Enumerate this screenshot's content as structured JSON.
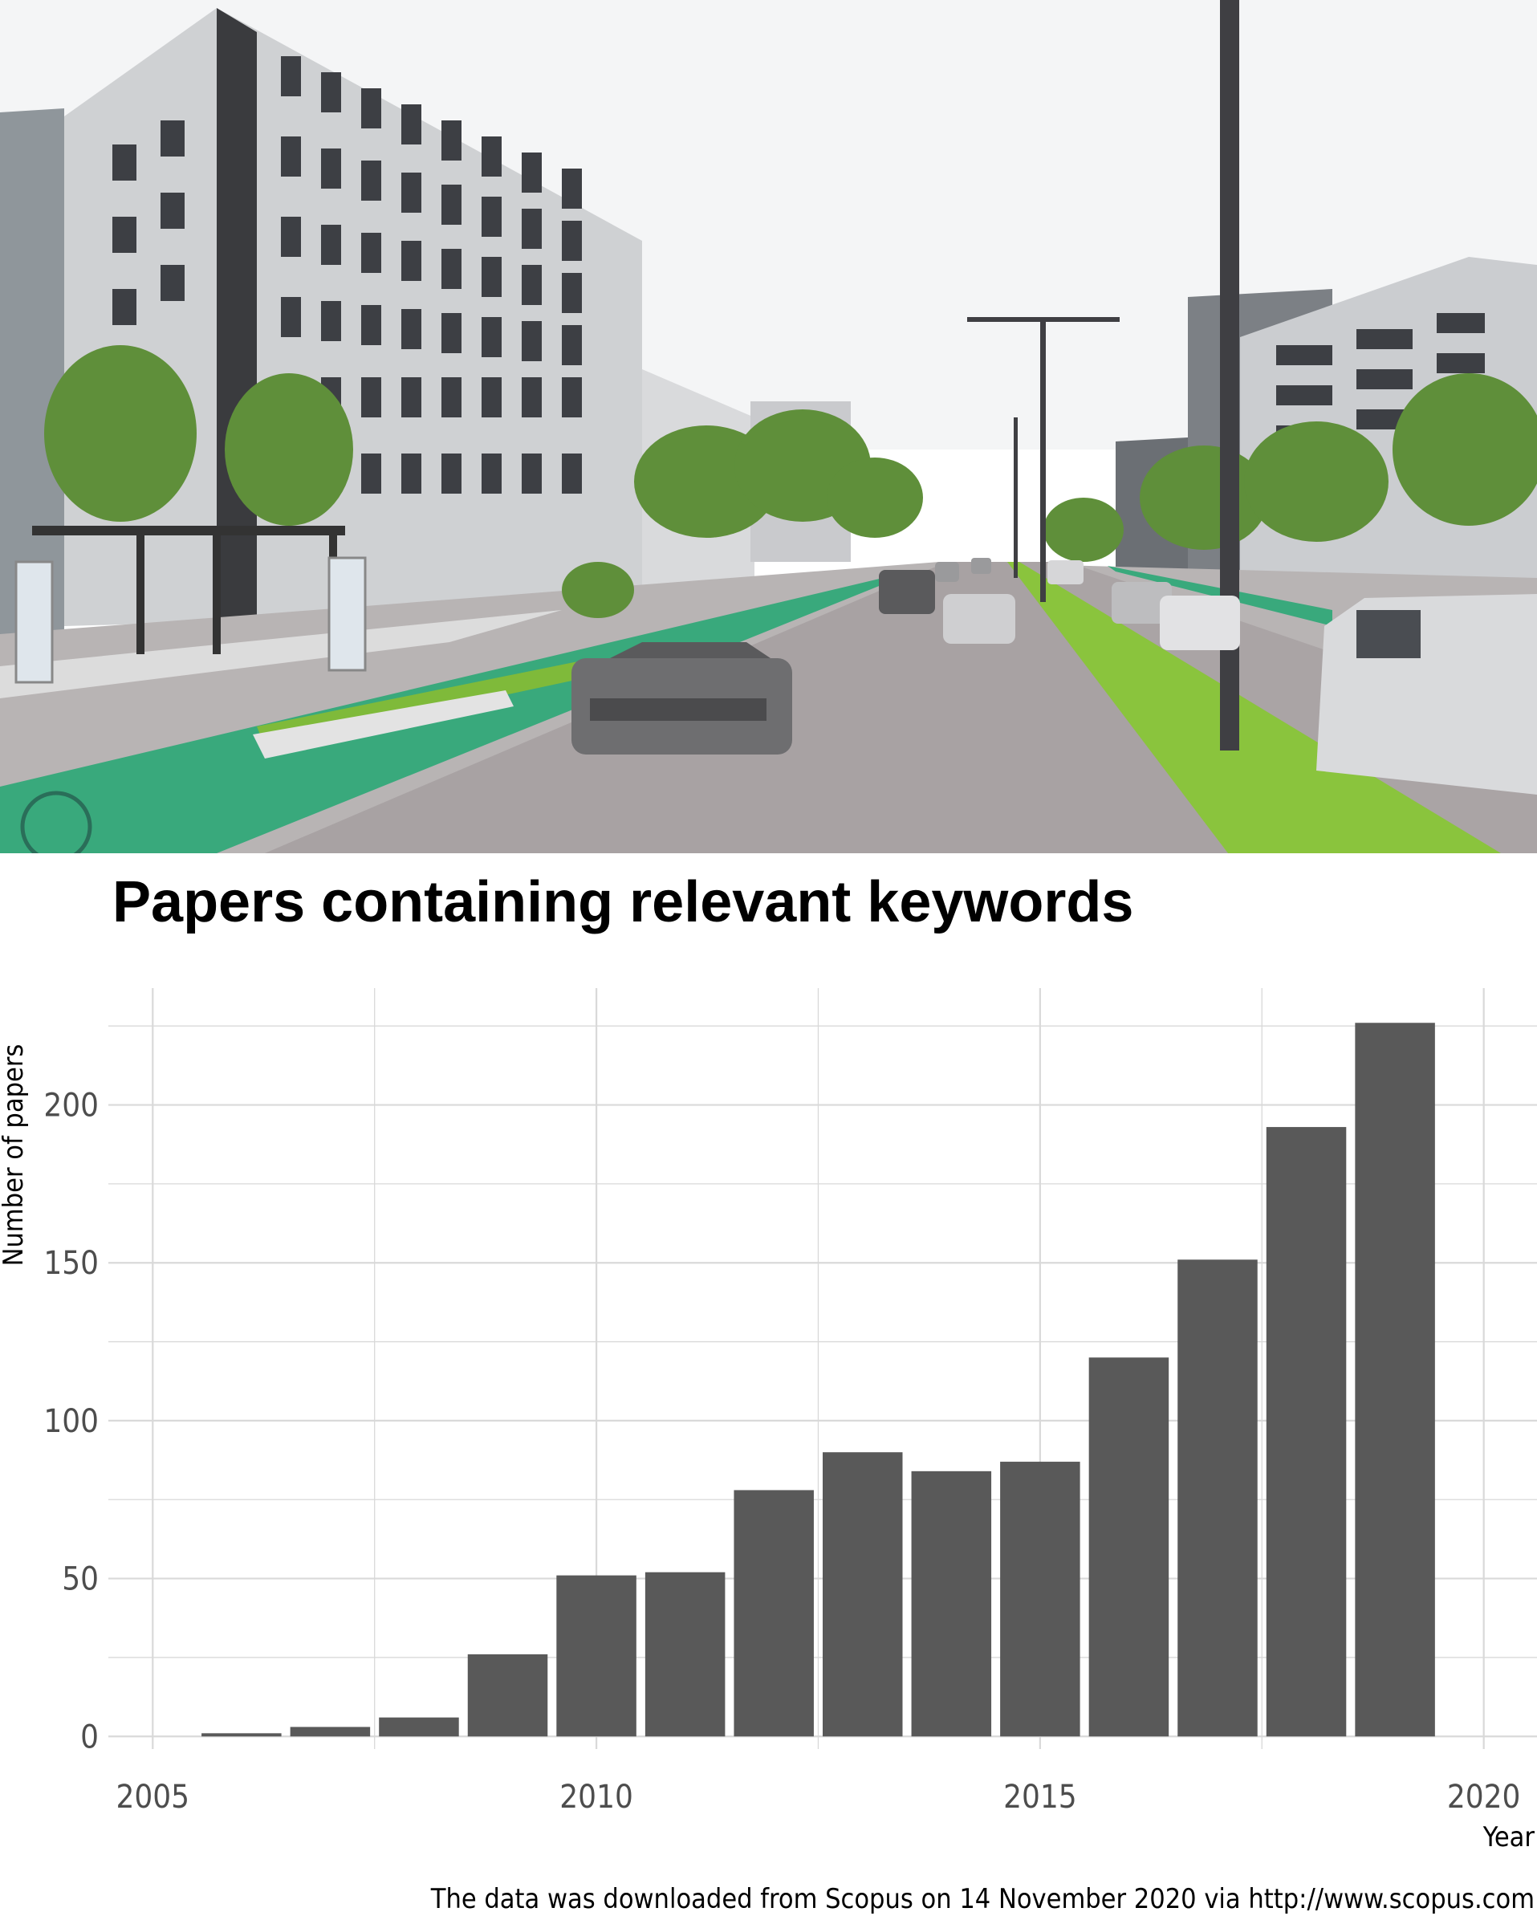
{
  "chart_data": {
    "type": "bar",
    "title": "Papers containing relevant keywords",
    "xlabel": "Year",
    "ylabel": "Number of papers",
    "caption": "The data was downloaded from Scopus on 14 November 2020 via http://www.scopus.com",
    "x": [
      2006,
      2007,
      2008,
      2009,
      2010,
      2011,
      2012,
      2013,
      2014,
      2015,
      2016,
      2017,
      2018,
      2019
    ],
    "values": [
      1,
      3,
      6,
      26,
      51,
      52,
      78,
      90,
      84,
      87,
      120,
      151,
      193,
      226
    ],
    "xlim": [
      2004.5,
      2020.6
    ],
    "ylim": [
      -4,
      237
    ],
    "xticks": [
      2005,
      2010,
      2015,
      2020
    ],
    "yticks": [
      0,
      50,
      100,
      150,
      200
    ],
    "grid": true,
    "bar_color": "#595959",
    "grid_color": "#d9d9d9"
  }
}
